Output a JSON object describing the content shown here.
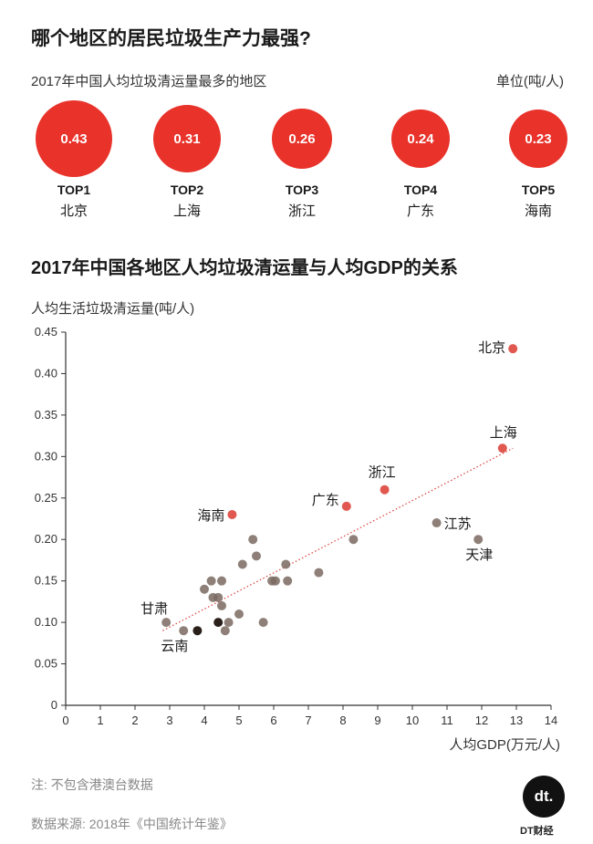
{
  "header": {
    "title": "哪个地区的居民垃圾生产力最强?",
    "subtitle": "2017年中国人均垃圾清运量最多的地区",
    "unit": "单位(吨/人)"
  },
  "top5": [
    {
      "value": "0.43",
      "rank": "TOP1",
      "region": "北京"
    },
    {
      "value": "0.31",
      "rank": "TOP2",
      "region": "上海"
    },
    {
      "value": "0.26",
      "rank": "TOP3",
      "region": "浙江"
    },
    {
      "value": "0.24",
      "rank": "TOP4",
      "region": "广东"
    },
    {
      "value": "0.23",
      "rank": "TOP5",
      "region": "海南"
    }
  ],
  "scatter": {
    "title": "2017年中国各地区人均垃圾清运量与人均GDP的关系",
    "ylabel": "人均生活垃圾清运量(吨/人)",
    "xlabel": "人均GDP(万元/人)"
  },
  "chart_data": {
    "type": "scatter",
    "title": "2017年中国各地区人均垃圾清运量与人均GDP的关系",
    "xlabel": "人均GDP(万元/人)",
    "ylabel": "人均生活垃圾清运量(吨/人)",
    "xlim": [
      0,
      14
    ],
    "ylim": [
      0,
      0.45
    ],
    "xticks": [
      "0",
      "1",
      "2",
      "3",
      "4",
      "5",
      "6",
      "7",
      "8",
      "9",
      "10",
      "11",
      "12",
      "13",
      "14"
    ],
    "yticks": [
      "0",
      "0.05",
      "0.10",
      "0.15",
      "0.20",
      "0.25",
      "0.30",
      "0.35",
      "0.40",
      "0.45"
    ],
    "grid": false,
    "trendline": {
      "x": [
        2.8,
        12.9
      ],
      "y": [
        0.09,
        0.31
      ],
      "style": "dotted"
    },
    "points": [
      {
        "x": 12.9,
        "y": 0.43,
        "label": "北京",
        "kind": "top"
      },
      {
        "x": 12.6,
        "y": 0.31,
        "label": "上海",
        "kind": "top"
      },
      {
        "x": 9.2,
        "y": 0.26,
        "label": "浙江",
        "kind": "top"
      },
      {
        "x": 8.1,
        "y": 0.24,
        "label": "广东",
        "kind": "top"
      },
      {
        "x": 4.8,
        "y": 0.23,
        "label": "海南",
        "kind": "top"
      },
      {
        "x": 10.7,
        "y": 0.22,
        "label": "江苏",
        "kind": "labeled"
      },
      {
        "x": 11.9,
        "y": 0.2,
        "label": "天津",
        "kind": "labeled"
      },
      {
        "x": 2.9,
        "y": 0.1,
        "label": "甘肃",
        "kind": "labeled"
      },
      {
        "x": 3.8,
        "y": 0.09,
        "label": "云南",
        "kind": "labeled"
      },
      {
        "x": 3.4,
        "y": 0.09,
        "label": "",
        "kind": "other"
      },
      {
        "x": 4.0,
        "y": 0.14,
        "label": "",
        "kind": "other"
      },
      {
        "x": 4.2,
        "y": 0.15,
        "label": "",
        "kind": "other"
      },
      {
        "x": 4.25,
        "y": 0.13,
        "label": "",
        "kind": "other"
      },
      {
        "x": 4.4,
        "y": 0.1,
        "label": "",
        "kind": "other"
      },
      {
        "x": 4.4,
        "y": 0.13,
        "label": "",
        "kind": "other"
      },
      {
        "x": 4.5,
        "y": 0.12,
        "label": "",
        "kind": "other"
      },
      {
        "x": 4.5,
        "y": 0.15,
        "label": "",
        "kind": "other"
      },
      {
        "x": 4.6,
        "y": 0.09,
        "label": "",
        "kind": "other"
      },
      {
        "x": 4.7,
        "y": 0.1,
        "label": "",
        "kind": "other"
      },
      {
        "x": 5.0,
        "y": 0.11,
        "label": "",
        "kind": "other"
      },
      {
        "x": 5.1,
        "y": 0.17,
        "label": "",
        "kind": "other"
      },
      {
        "x": 5.4,
        "y": 0.2,
        "label": "",
        "kind": "other"
      },
      {
        "x": 5.5,
        "y": 0.18,
        "label": "",
        "kind": "other"
      },
      {
        "x": 5.7,
        "y": 0.1,
        "label": "",
        "kind": "other"
      },
      {
        "x": 5.95,
        "y": 0.15,
        "label": "",
        "kind": "other"
      },
      {
        "x": 6.05,
        "y": 0.15,
        "label": "",
        "kind": "other"
      },
      {
        "x": 6.35,
        "y": 0.17,
        "label": "",
        "kind": "other"
      },
      {
        "x": 6.4,
        "y": 0.15,
        "label": "",
        "kind": "other"
      },
      {
        "x": 7.3,
        "y": 0.16,
        "label": "",
        "kind": "other"
      },
      {
        "x": 8.3,
        "y": 0.2,
        "label": "",
        "kind": "other"
      }
    ]
  },
  "footer": {
    "note": "注: 不包含港澳台数据",
    "source": "数据来源: 2018年《中国统计年鉴》",
    "logo_mark": "dt.",
    "logo_text": "DT财经"
  },
  "colors": {
    "accent": "#e8322a",
    "top_point": "#e0584f",
    "other_point": "#7a6a60",
    "dark_point": "#2a1f1a",
    "trendline": "#d9403a"
  }
}
